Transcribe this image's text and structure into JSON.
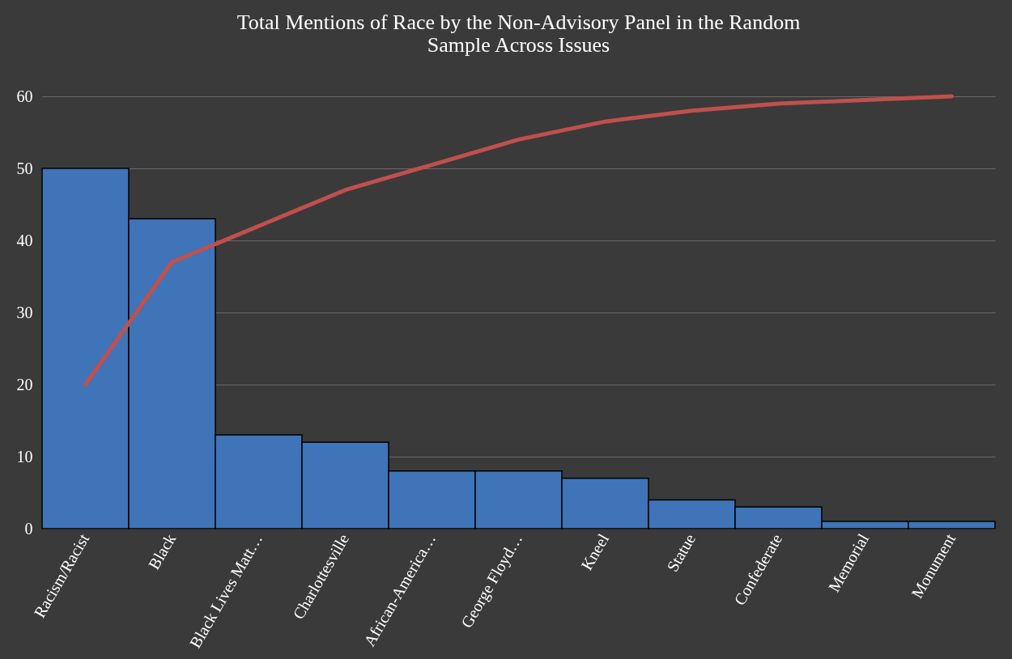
{
  "chart_data": {
    "type": "bar",
    "title": "Total Mentions of Race by the Non-Advisory Panel in the Random Sample Across Issues",
    "categories": [
      "Racism/Racist",
      "Black",
      "Black Lives Matt…",
      "Charlottesville",
      "African-America…",
      "George Floyd…",
      "Kneel",
      "Statue",
      "Confederate",
      "Memorial",
      "Monument"
    ],
    "series": [
      {
        "color": "#3f74b8",
        "values": [
          50,
          43,
          13,
          12,
          8,
          8,
          7,
          4,
          3,
          1,
          1
        ]
      },
      {
        "type": "line",
        "color": "#c0504d",
        "values": [
          20,
          37,
          42,
          47,
          50.5,
          54,
          56.5,
          58,
          59,
          59.5,
          60
        ]
      }
    ],
    "ylim": [
      0,
      60
    ],
    "yticks": [
      0,
      10,
      20,
      30,
      40,
      50,
      60
    ],
    "grid": "y"
  }
}
